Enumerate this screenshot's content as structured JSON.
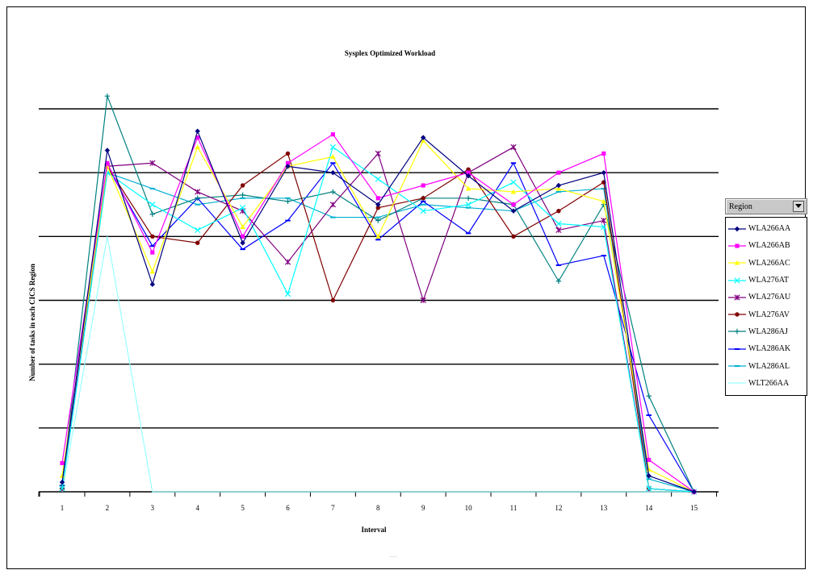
{
  "chart_data": {
    "type": "line",
    "title": "Sysplex Optimized Workload",
    "xlabel": "Interval",
    "ylabel": "Number of tasks in each CICS Region",
    "categories": [
      "1",
      "2",
      "3",
      "4",
      "5",
      "6",
      "7",
      "8",
      "9",
      "10",
      "11",
      "12",
      "13",
      "14",
      "15"
    ],
    "ylim": [
      0,
      120
    ],
    "gridlines": [
      20,
      40,
      60,
      80,
      100,
      120
    ],
    "grid": true,
    "legend_position": "right",
    "legend_title": "Region",
    "series": [
      {
        "name": "WLA266AA",
        "color": "#000080",
        "marker": "diamond",
        "values": [
          3,
          107,
          65,
          113,
          78,
          102,
          100,
          90,
          111,
          99,
          88,
          96,
          100,
          5,
          0
        ]
      },
      {
        "name": "WLA266AB",
        "color": "#ff00ff",
        "marker": "square",
        "values": [
          9,
          103,
          75,
          111,
          80,
          103,
          112,
          92,
          96,
          100,
          90,
          100,
          106,
          10,
          0
        ]
      },
      {
        "name": "WLA266AC",
        "color": "#ffff00",
        "marker": "triangle",
        "values": [
          5,
          102,
          69,
          108,
          83,
          102,
          105,
          80,
          110,
          95,
          94,
          95,
          91,
          7,
          0
        ]
      },
      {
        "name": "WLA276AT",
        "color": "#00ffff",
        "marker": "x",
        "values": [
          1,
          100,
          90,
          82,
          89,
          62,
          108,
          98,
          88,
          90,
          97,
          84,
          83,
          1,
          0
        ]
      },
      {
        "name": "WLA276AU",
        "color": "#800080",
        "marker": "star",
        "values": [
          1,
          102,
          103,
          94,
          88,
          72,
          90,
          106,
          60,
          100,
          108,
          82,
          85,
          1,
          0
        ]
      },
      {
        "name": "WLA276AV",
        "color": "#800000",
        "marker": "circle",
        "values": [
          1,
          102,
          80,
          78,
          96,
          106,
          60,
          89,
          92,
          101,
          80,
          88,
          97,
          1,
          0
        ]
      },
      {
        "name": "WLA286AJ",
        "color": "#008080",
        "marker": "plus",
        "values": [
          2,
          124,
          87,
          92,
          93,
          91,
          94,
          85,
          92,
          92,
          90,
          66,
          90,
          30,
          0
        ]
      },
      {
        "name": "WLA286AK",
        "color": "#0000ff",
        "marker": "dash",
        "values": [
          2,
          102,
          77,
          92,
          76,
          85,
          103,
          79,
          91,
          81,
          103,
          71,
          74,
          24,
          0
        ]
      },
      {
        "name": "WLA286AL",
        "color": "#00b0d0",
        "marker": "dash",
        "values": [
          1,
          100,
          95,
          90,
          92,
          92,
          86,
          86,
          90,
          89,
          88,
          94,
          95,
          4,
          0
        ]
      },
      {
        "name": "WLT266AA",
        "color": "#99ffff",
        "marker": "none",
        "values": [
          0,
          80,
          0,
          0,
          0,
          0,
          0,
          0,
          0,
          0,
          0,
          0,
          0,
          0,
          0
        ]
      }
    ]
  }
}
